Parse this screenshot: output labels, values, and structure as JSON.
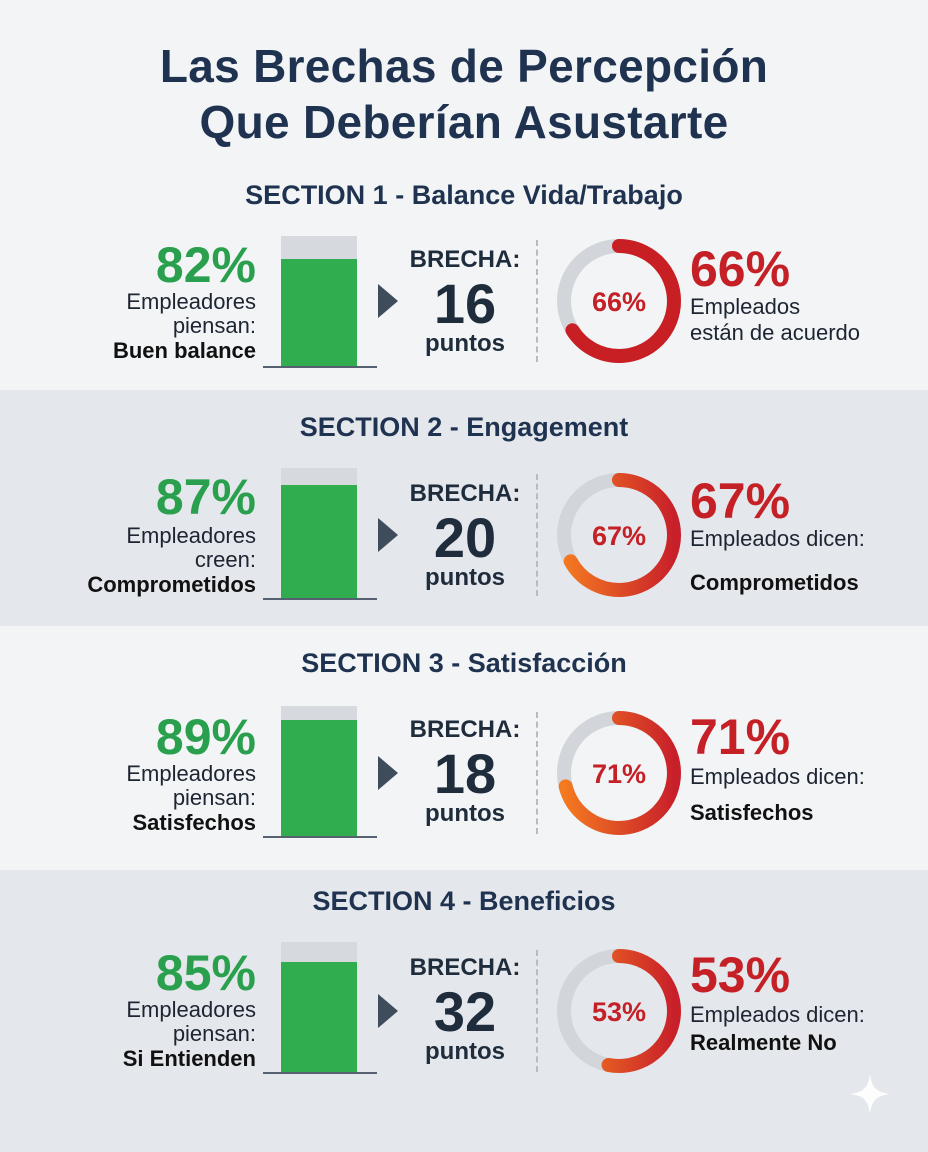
{
  "title_line1": "Las Brechas de Percepción",
  "title_line2": "Que Deberían Asustarte",
  "colors": {
    "green": "#2fad4f",
    "red": "#c42026",
    "orange": "#f26a21",
    "track": "#d2d6db"
  },
  "chart_data": [
    {
      "type": "bar",
      "section_title": "SECTION 1 - Balance Vida/Trabajo",
      "employer_pct": 82,
      "employer_pct_label": "82%",
      "employer_text": [
        "Empleadores",
        "piensan:"
      ],
      "employer_strong": "Buen balance",
      "gap_label": "BRECHA:",
      "gap": 16,
      "gap_text": "16",
      "gap_unit": "puntos",
      "employee_pct": 66,
      "employee_pct_label": "66%",
      "employee_text": [
        "Empleados",
        "están de acuerdo"
      ],
      "employee_strong": ""
    },
    {
      "type": "bar",
      "section_title": "SECTION 2 - Engagement",
      "employer_pct": 87,
      "employer_pct_label": "87%",
      "employer_text": [
        "Empleadores",
        "creen:"
      ],
      "employer_strong": "Comprometidos",
      "gap_label": "BRECHA:",
      "gap": 20,
      "gap_text": "20",
      "gap_unit": "puntos",
      "employee_pct": 67,
      "employee_pct_label": "67%",
      "employee_text": [
        "Empleados dicen:"
      ],
      "employee_strong": "Comprometidos"
    },
    {
      "type": "bar",
      "section_title": "SECTION 3 - Satisfacción",
      "employer_pct": 89,
      "employer_pct_label": "89%",
      "employer_text": [
        "Empleadores",
        "piensan:"
      ],
      "employer_strong": "Satisfechos",
      "gap_label": "BRECHA:",
      "gap": 18,
      "gap_text": "18",
      "gap_unit": "puntos",
      "employee_pct": 71,
      "employee_pct_label": "71%",
      "employee_text": [
        "Empleados dicen:"
      ],
      "employee_strong": "Satisfechos"
    },
    {
      "type": "bar",
      "section_title": "SECTION 4 - Beneficios",
      "employer_pct": 85,
      "employer_pct_label": "85%",
      "employer_text": [
        "Empleadores",
        "piensan:"
      ],
      "employer_strong": "Si Entienden",
      "gap_label": "BRECHA:",
      "gap": 32,
      "gap_text": "32",
      "gap_unit": "puntos",
      "employee_pct": 53,
      "employee_pct_label": "53%",
      "employee_text": [
        "Empleados dicen:"
      ],
      "employee_strong": "Realmente No"
    }
  ]
}
